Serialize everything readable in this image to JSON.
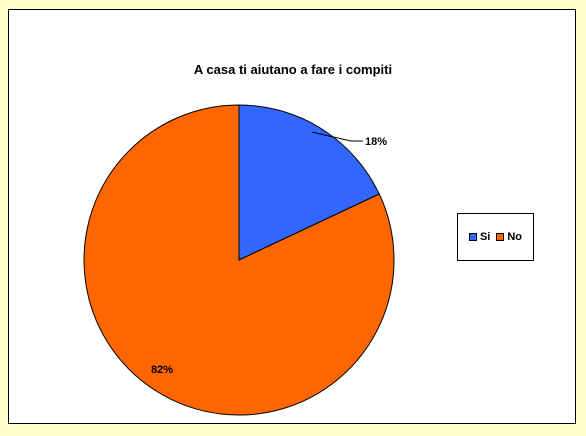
{
  "chart_data": {
    "type": "pie",
    "title": "A casa ti aiutano a fare i compiti",
    "categories": [
      "Si",
      "No"
    ],
    "values": [
      18,
      82
    ],
    "labels": [
      "18%",
      "82%"
    ],
    "colors": [
      "#3366ff",
      "#ff6600"
    ],
    "legend_position": "right"
  },
  "legend": {
    "items": [
      {
        "label": "Si",
        "color": "#3366ff"
      },
      {
        "label": "No",
        "color": "#ff6600"
      }
    ]
  }
}
